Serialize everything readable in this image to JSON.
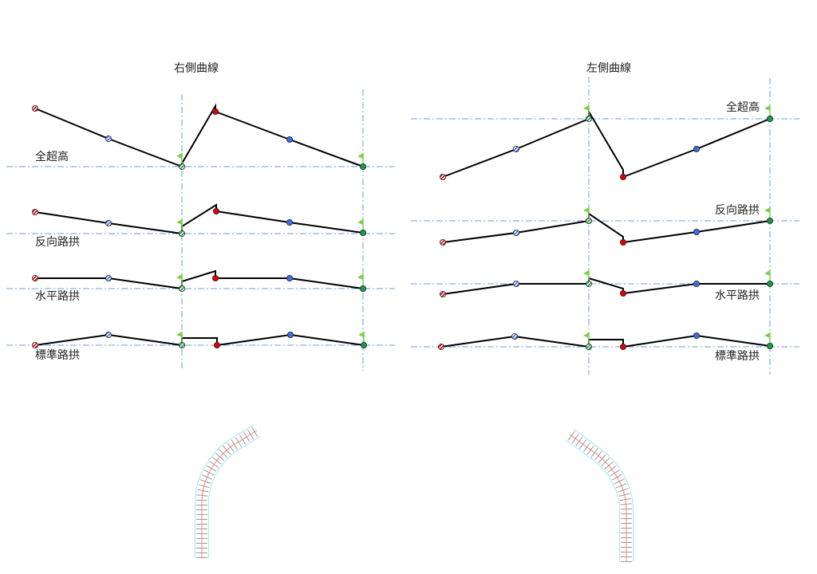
{
  "panels": [
    {
      "title": "右側曲線",
      "labels": [
        "全超高",
        "反向路拱",
        "水平路拱",
        "標準路拱"
      ]
    },
    {
      "title": "左側曲線",
      "labels": [
        "全超高",
        "反向路拱",
        "水平路拱",
        "標準路拱"
      ]
    }
  ],
  "colors": {
    "guide": "#6a9fd8",
    "profile": "#000000",
    "red_point": "#e00000",
    "blue_point": "#3a6ee8",
    "green_point": "#1a9a4a",
    "flag": "#7ccf4a",
    "road_edge": "#a8e4f0",
    "centerline": "#f08080"
  }
}
